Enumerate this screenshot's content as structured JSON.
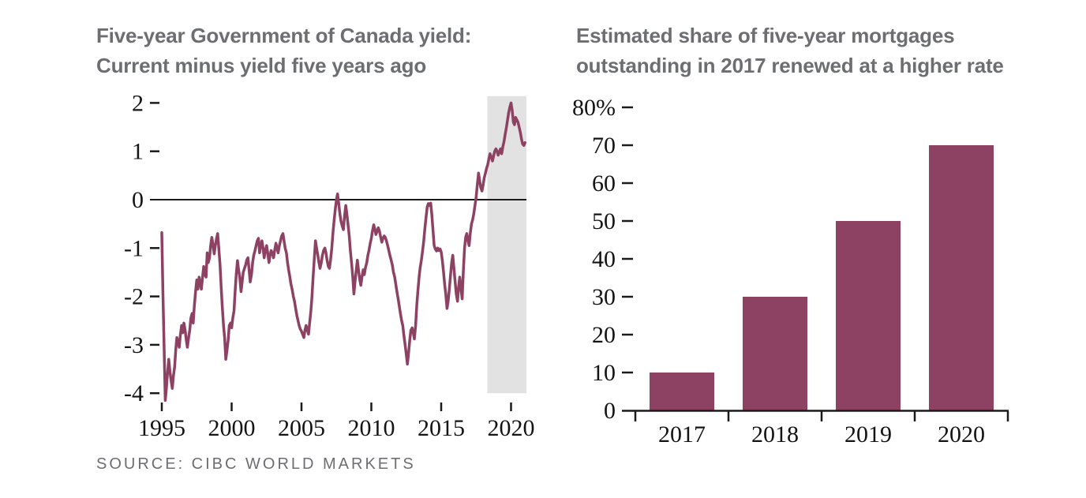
{
  "page": {
    "source_note": "SOURCE: CIBC WORLD MARKETS"
  },
  "colors": {
    "series": "#8d4163",
    "title_text": "#6d6e71",
    "axis_text": "#141414",
    "tick_mark": "#1a1a1a",
    "zero_line": "#1a1a1a",
    "highlight_band": "#e2e2e3",
    "source_text": "#6d6e71",
    "background": "#ffffff"
  },
  "chart_data": [
    {
      "id": "yield-line-chart",
      "type": "line",
      "title": "Five-year Government of Canada yield: Current minus yield five years ago",
      "title_lines": [
        "Five-year Government of Canada yield:",
        "Current minus yield five years ago"
      ],
      "xlabel": "",
      "ylabel": "",
      "xlim": [
        1994.6,
        2021.3
      ],
      "ylim": [
        -4.35,
        2.15
      ],
      "yticks": [
        2,
        1,
        0,
        -1,
        -2,
        -3,
        -4
      ],
      "ytick_labels": [
        "2",
        "1",
        "0",
        "-1",
        "-2",
        "-3",
        "-4"
      ],
      "xticks": [
        1995,
        2000,
        2005,
        2010,
        2015,
        2020
      ],
      "xtick_labels": [
        "1995",
        "2000",
        "2005",
        "2010",
        "2015",
        "2020"
      ],
      "grid": false,
      "zero_line": true,
      "highlight_band": {
        "from": 2018.3,
        "to": 2021.1,
        "value_top": 2.14,
        "value_bottom": -4.0
      },
      "line_color": "#8d4163",
      "points": [
        [
          1995.0,
          -0.68
        ],
        [
          1995.08,
          -1.9
        ],
        [
          1995.17,
          -3.1
        ],
        [
          1995.25,
          -4.15
        ],
        [
          1995.33,
          -3.9
        ],
        [
          1995.42,
          -3.55
        ],
        [
          1995.5,
          -3.3
        ],
        [
          1995.58,
          -3.55
        ],
        [
          1995.67,
          -3.75
        ],
        [
          1995.75,
          -3.9
        ],
        [
          1995.83,
          -3.65
        ],
        [
          1995.92,
          -3.45
        ],
        [
          1996.0,
          -3.1
        ],
        [
          1996.08,
          -2.85
        ],
        [
          1996.17,
          -2.95
        ],
        [
          1996.25,
          -3.05
        ],
        [
          1996.33,
          -2.8
        ],
        [
          1996.42,
          -2.6
        ],
        [
          1996.5,
          -2.75
        ],
        [
          1996.58,
          -2.55
        ],
        [
          1996.67,
          -2.7
        ],
        [
          1996.75,
          -2.9
        ],
        [
          1996.83,
          -3.05
        ],
        [
          1996.92,
          -2.85
        ],
        [
          1997.0,
          -2.7
        ],
        [
          1997.08,
          -2.45
        ],
        [
          1997.17,
          -2.35
        ],
        [
          1997.25,
          -2.55
        ],
        [
          1997.33,
          -2.2
        ],
        [
          1997.42,
          -1.9
        ],
        [
          1997.5,
          -1.66
        ],
        [
          1997.58,
          -1.85
        ],
        [
          1997.67,
          -1.6
        ],
        [
          1997.75,
          -1.72
        ],
        [
          1997.83,
          -1.85
        ],
        [
          1997.92,
          -1.6
        ],
        [
          1998.0,
          -1.38
        ],
        [
          1998.08,
          -1.55
        ],
        [
          1998.17,
          -1.6
        ],
        [
          1998.25,
          -1.1
        ],
        [
          1998.33,
          -1.3
        ],
        [
          1998.42,
          -1.2
        ],
        [
          1998.5,
          -0.95
        ],
        [
          1998.58,
          -0.78
        ],
        [
          1998.67,
          -0.95
        ],
        [
          1998.75,
          -1.12
        ],
        [
          1998.83,
          -0.95
        ],
        [
          1998.92,
          -0.8
        ],
        [
          1999.0,
          -0.7
        ],
        [
          1999.08,
          -1.0
        ],
        [
          1999.17,
          -1.35
        ],
        [
          1999.25,
          -1.8
        ],
        [
          1999.33,
          -2.2
        ],
        [
          1999.42,
          -2.6
        ],
        [
          1999.5,
          -2.85
        ],
        [
          1999.58,
          -3.3
        ],
        [
          1999.67,
          -3.1
        ],
        [
          1999.75,
          -2.9
        ],
        [
          1999.83,
          -2.6
        ],
        [
          1999.92,
          -2.55
        ],
        [
          2000.0,
          -2.65
        ],
        [
          2000.08,
          -2.45
        ],
        [
          2000.17,
          -2.3
        ],
        [
          2000.25,
          -1.9
        ],
        [
          2000.33,
          -1.55
        ],
        [
          2000.42,
          -1.26
        ],
        [
          2000.5,
          -1.45
        ],
        [
          2000.58,
          -1.6
        ],
        [
          2000.67,
          -1.9
        ],
        [
          2000.75,
          -1.7
        ],
        [
          2000.83,
          -1.5
        ],
        [
          2000.92,
          -1.42
        ],
        [
          2001.0,
          -1.35
        ],
        [
          2001.08,
          -1.25
        ],
        [
          2001.17,
          -1.2
        ],
        [
          2001.25,
          -1.45
        ],
        [
          2001.33,
          -1.7
        ],
        [
          2001.42,
          -1.55
        ],
        [
          2001.5,
          -1.3
        ],
        [
          2001.58,
          -1.15
        ],
        [
          2001.67,
          -1.05
        ],
        [
          2001.75,
          -0.95
        ],
        [
          2001.83,
          -0.85
        ],
        [
          2001.92,
          -0.8
        ],
        [
          2002.0,
          -1.1
        ],
        [
          2002.08,
          -0.95
        ],
        [
          2002.17,
          -0.85
        ],
        [
          2002.25,
          -1.0
        ],
        [
          2002.33,
          -1.2
        ],
        [
          2002.42,
          -1.05
        ],
        [
          2002.5,
          -0.95
        ],
        [
          2002.58,
          -1.1
        ],
        [
          2002.67,
          -1.3
        ],
        [
          2002.75,
          -1.15
        ],
        [
          2002.83,
          -1.05
        ],
        [
          2002.92,
          -1.12
        ],
        [
          2003.0,
          -1.2
        ],
        [
          2003.08,
          -1.05
        ],
        [
          2003.17,
          -0.9
        ],
        [
          2003.25,
          -1.0
        ],
        [
          2003.33,
          -1.1
        ],
        [
          2003.42,
          -0.95
        ],
        [
          2003.5,
          -0.85
        ],
        [
          2003.58,
          -0.75
        ],
        [
          2003.67,
          -0.7
        ],
        [
          2003.75,
          -0.85
        ],
        [
          2003.83,
          -1.0
        ],
        [
          2003.92,
          -1.1
        ],
        [
          2004.0,
          -1.3
        ],
        [
          2004.08,
          -1.45
        ],
        [
          2004.17,
          -1.6
        ],
        [
          2004.25,
          -1.75
        ],
        [
          2004.33,
          -1.85
        ],
        [
          2004.42,
          -2.0
        ],
        [
          2004.5,
          -2.1
        ],
        [
          2004.58,
          -2.25
        ],
        [
          2004.67,
          -2.4
        ],
        [
          2004.75,
          -2.5
        ],
        [
          2004.83,
          -2.6
        ],
        [
          2004.92,
          -2.68
        ],
        [
          2005.0,
          -2.72
        ],
        [
          2005.08,
          -2.78
        ],
        [
          2005.17,
          -2.85
        ],
        [
          2005.25,
          -2.7
        ],
        [
          2005.33,
          -2.6
        ],
        [
          2005.42,
          -2.7
        ],
        [
          2005.5,
          -2.78
        ],
        [
          2005.58,
          -2.55
        ],
        [
          2005.67,
          -2.3
        ],
        [
          2005.75,
          -2.0
        ],
        [
          2005.83,
          -1.6
        ],
        [
          2005.92,
          -1.2
        ],
        [
          2006.0,
          -0.85
        ],
        [
          2006.08,
          -1.0
        ],
        [
          2006.17,
          -1.15
        ],
        [
          2006.25,
          -1.3
        ],
        [
          2006.33,
          -1.42
        ],
        [
          2006.42,
          -1.3
        ],
        [
          2006.5,
          -1.15
        ],
        [
          2006.58,
          -1.05
        ],
        [
          2006.67,
          -1.0
        ],
        [
          2006.75,
          -1.1
        ],
        [
          2006.83,
          -1.25
        ],
        [
          2006.92,
          -1.38
        ],
        [
          2007.0,
          -1.42
        ],
        [
          2007.08,
          -1.25
        ],
        [
          2007.17,
          -1.0
        ],
        [
          2007.25,
          -0.7
        ],
        [
          2007.33,
          -0.45
        ],
        [
          2007.42,
          -0.2
        ],
        [
          2007.5,
          0.0
        ],
        [
          2007.58,
          0.12
        ],
        [
          2007.67,
          -0.1
        ],
        [
          2007.75,
          -0.3
        ],
        [
          2007.83,
          -0.45
        ],
        [
          2007.92,
          -0.55
        ],
        [
          2008.0,
          -0.62
        ],
        [
          2008.08,
          -0.35
        ],
        [
          2008.17,
          -0.12
        ],
        [
          2008.25,
          -0.3
        ],
        [
          2008.33,
          -0.5
        ],
        [
          2008.42,
          -0.75
        ],
        [
          2008.5,
          -1.05
        ],
        [
          2008.58,
          -1.3
        ],
        [
          2008.67,
          -1.6
        ],
        [
          2008.75,
          -1.95
        ],
        [
          2008.83,
          -1.7
        ],
        [
          2008.92,
          -1.45
        ],
        [
          2009.0,
          -1.25
        ],
        [
          2009.08,
          -1.45
        ],
        [
          2009.17,
          -1.65
        ],
        [
          2009.25,
          -1.77
        ],
        [
          2009.33,
          -1.6
        ],
        [
          2009.42,
          -1.45
        ],
        [
          2009.5,
          -1.55
        ],
        [
          2009.58,
          -1.4
        ],
        [
          2009.67,
          -1.3
        ],
        [
          2009.75,
          -1.15
        ],
        [
          2009.83,
          -1.05
        ],
        [
          2009.92,
          -0.9
        ],
        [
          2010.0,
          -0.8
        ],
        [
          2010.08,
          -0.65
        ],
        [
          2010.17,
          -0.52
        ],
        [
          2010.25,
          -0.6
        ],
        [
          2010.33,
          -0.72
        ],
        [
          2010.42,
          -0.65
        ],
        [
          2010.5,
          -0.58
        ],
        [
          2010.58,
          -0.65
        ],
        [
          2010.67,
          -0.78
        ],
        [
          2010.75,
          -0.88
        ],
        [
          2010.83,
          -0.8
        ],
        [
          2010.92,
          -0.75
        ],
        [
          2011.0,
          -0.78
        ],
        [
          2011.08,
          -0.85
        ],
        [
          2011.17,
          -0.95
        ],
        [
          2011.25,
          -1.05
        ],
        [
          2011.33,
          -1.15
        ],
        [
          2011.42,
          -1.25
        ],
        [
          2011.5,
          -1.35
        ],
        [
          2011.58,
          -1.5
        ],
        [
          2011.67,
          -1.6
        ],
        [
          2011.75,
          -1.75
        ],
        [
          2011.83,
          -1.9
        ],
        [
          2011.92,
          -2.05
        ],
        [
          2012.0,
          -2.2
        ],
        [
          2012.08,
          -2.35
        ],
        [
          2012.17,
          -2.5
        ],
        [
          2012.25,
          -2.6
        ],
        [
          2012.33,
          -2.8
        ],
        [
          2012.42,
          -3.0
        ],
        [
          2012.5,
          -3.2
        ],
        [
          2012.58,
          -3.4
        ],
        [
          2012.67,
          -3.15
        ],
        [
          2012.75,
          -2.9
        ],
        [
          2012.83,
          -2.7
        ],
        [
          2012.92,
          -2.65
        ],
        [
          2013.0,
          -2.75
        ],
        [
          2013.08,
          -2.88
        ],
        [
          2013.17,
          -2.6
        ],
        [
          2013.25,
          -2.2
        ],
        [
          2013.33,
          -1.9
        ],
        [
          2013.42,
          -1.6
        ],
        [
          2013.5,
          -1.4
        ],
        [
          2013.58,
          -1.25
        ],
        [
          2013.67,
          -1.05
        ],
        [
          2013.75,
          -0.85
        ],
        [
          2013.83,
          -0.6
        ],
        [
          2013.92,
          -0.35
        ],
        [
          2014.0,
          -0.15
        ],
        [
          2014.08,
          -0.08
        ],
        [
          2014.17,
          -0.12
        ],
        [
          2014.25,
          -0.07
        ],
        [
          2014.33,
          -0.3
        ],
        [
          2014.42,
          -0.65
        ],
        [
          2014.5,
          -0.95
        ],
        [
          2014.58,
          -1.02
        ],
        [
          2014.67,
          -1.06
        ],
        [
          2014.75,
          -1.0
        ],
        [
          2014.83,
          -1.05
        ],
        [
          2014.92,
          -1.02
        ],
        [
          2015.0,
          -1.08
        ],
        [
          2015.08,
          -1.25
        ],
        [
          2015.17,
          -1.5
        ],
        [
          2015.25,
          -1.75
        ],
        [
          2015.33,
          -1.95
        ],
        [
          2015.42,
          -2.25
        ],
        [
          2015.5,
          -2.1
        ],
        [
          2015.58,
          -1.85
        ],
        [
          2015.67,
          -1.55
        ],
        [
          2015.75,
          -1.3
        ],
        [
          2015.83,
          -1.15
        ],
        [
          2015.92,
          -1.45
        ],
        [
          2016.0,
          -1.7
        ],
        [
          2016.08,
          -1.95
        ],
        [
          2016.17,
          -2.1
        ],
        [
          2016.25,
          -1.8
        ],
        [
          2016.33,
          -1.6
        ],
        [
          2016.42,
          -1.85
        ],
        [
          2016.5,
          -2.05
        ],
        [
          2016.58,
          -1.5
        ],
        [
          2016.67,
          -1.0
        ],
        [
          2016.75,
          -0.78
        ],
        [
          2016.83,
          -0.7
        ],
        [
          2016.92,
          -0.85
        ],
        [
          2017.0,
          -0.95
        ],
        [
          2017.08,
          -0.7
        ],
        [
          2017.17,
          -0.5
        ],
        [
          2017.25,
          -0.42
        ],
        [
          2017.33,
          -0.3
        ],
        [
          2017.42,
          -0.12
        ],
        [
          2017.5,
          0.05
        ],
        [
          2017.58,
          0.3
        ],
        [
          2017.67,
          0.55
        ],
        [
          2017.75,
          0.4
        ],
        [
          2017.83,
          0.25
        ],
        [
          2017.92,
          0.18
        ],
        [
          2018.0,
          0.3
        ],
        [
          2018.08,
          0.45
        ],
        [
          2018.17,
          0.55
        ],
        [
          2018.25,
          0.65
        ],
        [
          2018.33,
          0.72
        ],
        [
          2018.42,
          0.85
        ],
        [
          2018.5,
          0.95
        ],
        [
          2018.58,
          0.88
        ],
        [
          2018.67,
          0.8
        ],
        [
          2018.75,
          0.9
        ],
        [
          2018.83,
          1.0
        ],
        [
          2018.92,
          1.05
        ],
        [
          2019.0,
          1.0
        ],
        [
          2019.08,
          0.92
        ],
        [
          2019.17,
          1.0
        ],
        [
          2019.25,
          1.05
        ],
        [
          2019.33,
          0.95
        ],
        [
          2019.42,
          1.1
        ],
        [
          2019.5,
          1.2
        ],
        [
          2019.58,
          1.35
        ],
        [
          2019.67,
          1.5
        ],
        [
          2019.75,
          1.65
        ],
        [
          2019.83,
          1.8
        ],
        [
          2019.92,
          1.92
        ],
        [
          2020.0,
          2.0
        ],
        [
          2020.08,
          1.85
        ],
        [
          2020.17,
          1.6
        ],
        [
          2020.25,
          1.55
        ],
        [
          2020.33,
          1.7
        ],
        [
          2020.42,
          1.65
        ],
        [
          2020.5,
          1.6
        ],
        [
          2020.58,
          1.5
        ],
        [
          2020.67,
          1.38
        ],
        [
          2020.75,
          1.25
        ],
        [
          2020.83,
          1.15
        ],
        [
          2020.92,
          1.12
        ],
        [
          2021.0,
          1.18
        ]
      ]
    },
    {
      "id": "mortgage-bar-chart",
      "type": "bar",
      "title": "Estimated share of five-year mortgages outstanding in 2017 renewed at a higher rate",
      "title_lines": [
        "Estimated share of five-year mortgages",
        "outstanding in 2017 renewed at a higher rate"
      ],
      "xlabel": "",
      "ylabel": "",
      "categories": [
        "2017",
        "2018",
        "2019",
        "2020"
      ],
      "values": [
        10,
        30,
        50,
        70
      ],
      "ylim": [
        0,
        80
      ],
      "yticks": [
        0,
        10,
        20,
        30,
        40,
        50,
        60,
        70,
        80
      ],
      "ytick_labels": [
        "0",
        "10",
        "20",
        "30",
        "40",
        "50",
        "60",
        "70",
        "80%"
      ],
      "grid": false,
      "legend": false,
      "bar_color": "#8d4163"
    }
  ]
}
